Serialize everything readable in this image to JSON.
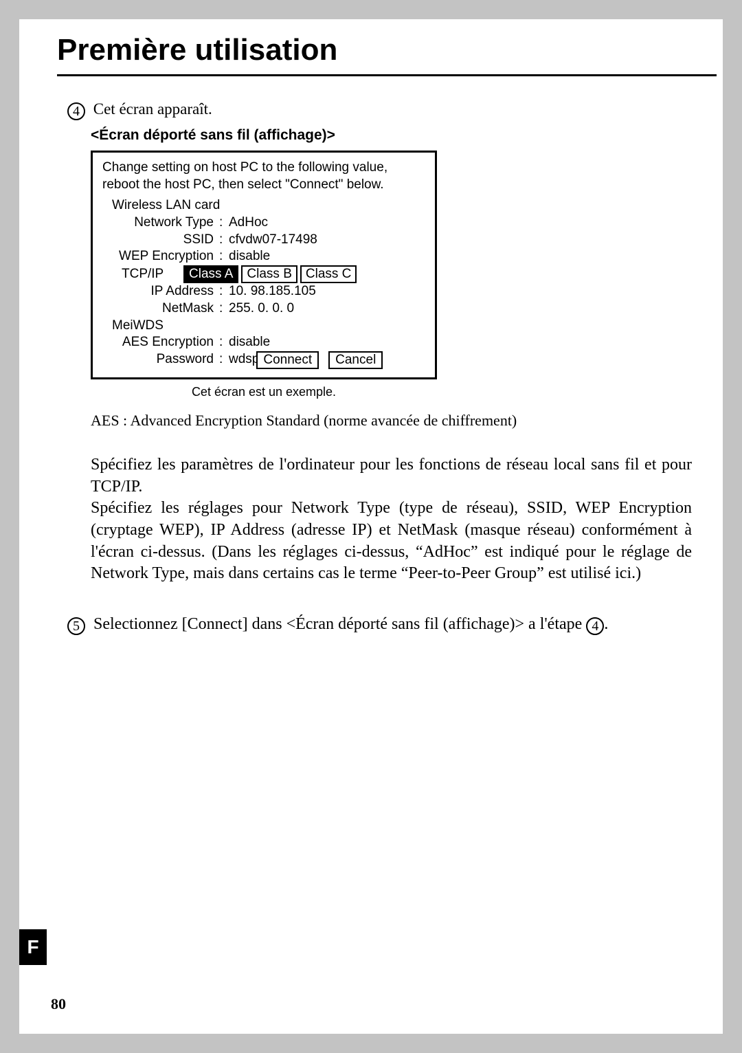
{
  "title": "Première utilisation",
  "step4": {
    "num": "4",
    "text": "Cet écran apparaît."
  },
  "subheading": "<Écran déporté sans fil (affichage)>",
  "panel": {
    "intro": "Change setting on host PC to the following value, reboot the host PC, then select \"Connect\" below.",
    "section1": "Wireless LAN card",
    "network_type": {
      "k": "Network Type",
      "v": "AdHoc"
    },
    "ssid": {
      "k": "SSID",
      "v": "cfvdw07-17498"
    },
    "wep": {
      "k": "WEP Encryption",
      "v": "disable"
    },
    "tcpip_label": "TCP/IP",
    "classes": [
      "Class A",
      "Class B",
      "Class C"
    ],
    "class_selected": 0,
    "ip": {
      "k": "IP Address",
      "v": "10. 98.185.105"
    },
    "netmask": {
      "k": "NetMask",
      "v": "255.  0.    0.   0"
    },
    "section2": "MeiWDS",
    "aes": {
      "k": "AES Encryption",
      "v": "disable"
    },
    "pwd": {
      "k": "Password",
      "v": "wdsp"
    },
    "connect_btn": "Connect",
    "cancel_btn": "Cancel"
  },
  "caption": "Cet écran est un exemple.",
  "aes_note": "AES   : Advanced Encryption Standard (norme avancée de chiffrement)",
  "paragraph": "Spécifiez les paramètres de l'ordinateur pour les fonctions de réseau local sans fil et pour TCP/IP.\nSpécifiez les réglages pour Network Type (type de réseau), SSID, WEP Encryption (cryptage WEP), IP Address (adresse IP) et NetMask (masque réseau) conformément à l'écran ci-dessus. (Dans les réglages ci-dessus, “AdHoc” est indiqué pour le réglage de Network Type, mais dans certains cas le terme “Peer-to-Peer Group” est utilisé ici.)",
  "step5": {
    "num": "5",
    "pre": "Selectionnez [Connect] dans <Écran déporté sans fil (affichage)> a l'étape ",
    "ref": "4",
    "post": "."
  },
  "side_tab": "F",
  "page_number": "80"
}
